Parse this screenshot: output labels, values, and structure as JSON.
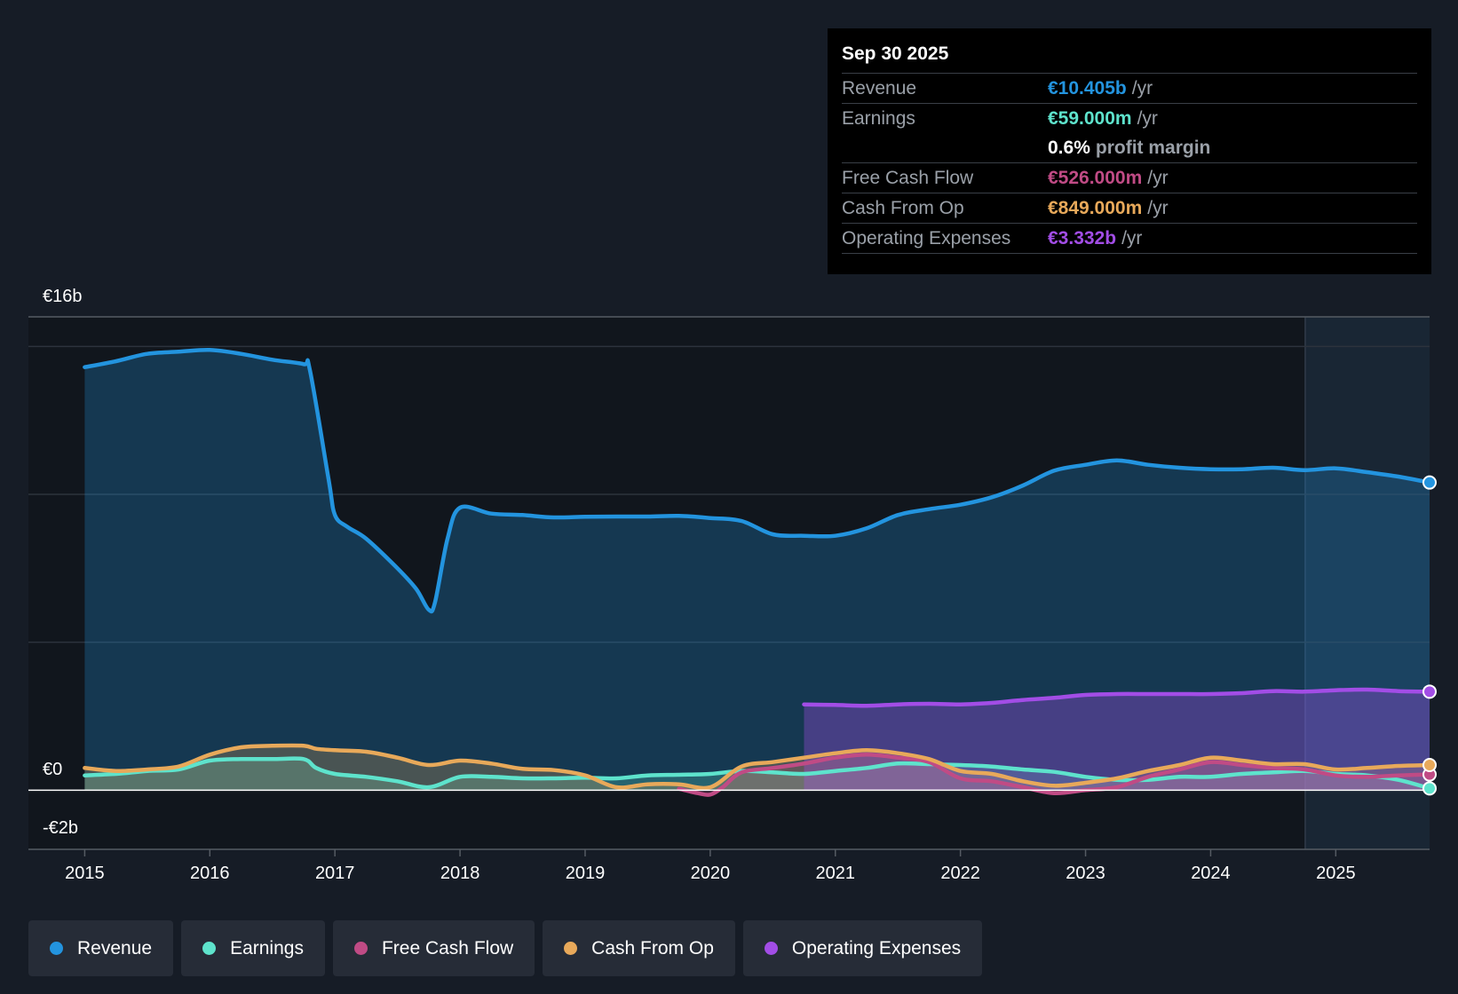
{
  "chart_data": {
    "type": "area",
    "y_tick_labels": [
      "€16b",
      "€0",
      "-€2b"
    ],
    "x_tick_labels": [
      "2015",
      "2016",
      "2017",
      "2018",
      "2019",
      "2020",
      "2021",
      "2022",
      "2023",
      "2024",
      "2025"
    ],
    "ylim": [
      -2,
      16
    ],
    "xlim": [
      2014.55,
      2025.75
    ],
    "series": [
      {
        "name": "Revenue",
        "color": "#2394df",
        "points": [
          [
            2015.0,
            14.3
          ],
          [
            2015.25,
            14.5
          ],
          [
            2015.5,
            14.75
          ],
          [
            2015.75,
            14.82
          ],
          [
            2016.0,
            14.88
          ],
          [
            2016.25,
            14.75
          ],
          [
            2016.5,
            14.55
          ],
          [
            2016.75,
            14.4
          ],
          [
            2016.8,
            14.2
          ],
          [
            2016.95,
            10.5
          ],
          [
            2017.0,
            9.3
          ],
          [
            2017.1,
            8.9
          ],
          [
            2017.25,
            8.5
          ],
          [
            2017.5,
            7.5
          ],
          [
            2017.65,
            6.8
          ],
          [
            2017.75,
            6.1
          ],
          [
            2017.8,
            6.35
          ],
          [
            2017.9,
            8.5
          ],
          [
            2018.0,
            9.55
          ],
          [
            2018.25,
            9.35
          ],
          [
            2018.5,
            9.3
          ],
          [
            2018.75,
            9.22
          ],
          [
            2019.0,
            9.24
          ],
          [
            2019.25,
            9.25
          ],
          [
            2019.5,
            9.25
          ],
          [
            2019.75,
            9.27
          ],
          [
            2020.0,
            9.2
          ],
          [
            2020.25,
            9.1
          ],
          [
            2020.5,
            8.65
          ],
          [
            2020.75,
            8.6
          ],
          [
            2021.0,
            8.6
          ],
          [
            2021.25,
            8.85
          ],
          [
            2021.5,
            9.3
          ],
          [
            2021.75,
            9.5
          ],
          [
            2022.0,
            9.65
          ],
          [
            2022.25,
            9.9
          ],
          [
            2022.5,
            10.3
          ],
          [
            2022.75,
            10.8
          ],
          [
            2023.0,
            11.0
          ],
          [
            2023.25,
            11.15
          ],
          [
            2023.5,
            11.0
          ],
          [
            2023.75,
            10.9
          ],
          [
            2024.0,
            10.85
          ],
          [
            2024.25,
            10.85
          ],
          [
            2024.5,
            10.9
          ],
          [
            2024.75,
            10.82
          ],
          [
            2025.0,
            10.88
          ],
          [
            2025.25,
            10.75
          ],
          [
            2025.5,
            10.6
          ],
          [
            2025.75,
            10.4
          ]
        ]
      },
      {
        "name": "Earnings",
        "color": "#5ee3cc",
        "points": [
          [
            2015.0,
            0.5
          ],
          [
            2015.25,
            0.55
          ],
          [
            2015.5,
            0.65
          ],
          [
            2015.75,
            0.7
          ],
          [
            2016.0,
            1.0
          ],
          [
            2016.25,
            1.05
          ],
          [
            2016.5,
            1.05
          ],
          [
            2016.75,
            1.05
          ],
          [
            2016.85,
            0.75
          ],
          [
            2017.0,
            0.55
          ],
          [
            2017.25,
            0.45
          ],
          [
            2017.5,
            0.3
          ],
          [
            2017.75,
            0.1
          ],
          [
            2018.0,
            0.45
          ],
          [
            2018.25,
            0.45
          ],
          [
            2018.5,
            0.4
          ],
          [
            2018.75,
            0.4
          ],
          [
            2019.0,
            0.42
          ],
          [
            2019.25,
            0.4
          ],
          [
            2019.5,
            0.5
          ],
          [
            2019.75,
            0.52
          ],
          [
            2020.0,
            0.55
          ],
          [
            2020.25,
            0.65
          ],
          [
            2020.5,
            0.6
          ],
          [
            2020.75,
            0.55
          ],
          [
            2021.0,
            0.65
          ],
          [
            2021.25,
            0.75
          ],
          [
            2021.5,
            0.9
          ],
          [
            2021.75,
            0.88
          ],
          [
            2022.0,
            0.85
          ],
          [
            2022.25,
            0.8
          ],
          [
            2022.5,
            0.7
          ],
          [
            2022.75,
            0.62
          ],
          [
            2023.0,
            0.45
          ],
          [
            2023.25,
            0.35
          ],
          [
            2023.5,
            0.35
          ],
          [
            2023.75,
            0.45
          ],
          [
            2024.0,
            0.45
          ],
          [
            2024.25,
            0.55
          ],
          [
            2024.5,
            0.6
          ],
          [
            2024.75,
            0.65
          ],
          [
            2025.0,
            0.55
          ],
          [
            2025.25,
            0.5
          ],
          [
            2025.5,
            0.35
          ],
          [
            2025.75,
            0.06
          ]
        ]
      },
      {
        "name": "Free Cash Flow",
        "color": "#c04b85",
        "points": [
          [
            2019.75,
            0.05
          ],
          [
            2019.9,
            -0.1
          ],
          [
            2020.0,
            -0.15
          ],
          [
            2020.1,
            0.1
          ],
          [
            2020.25,
            0.6
          ],
          [
            2020.5,
            0.75
          ],
          [
            2020.75,
            0.9
          ],
          [
            2021.0,
            1.1
          ],
          [
            2021.25,
            1.2
          ],
          [
            2021.5,
            1.1
          ],
          [
            2021.75,
            0.95
          ],
          [
            2022.0,
            0.4
          ],
          [
            2022.25,
            0.3
          ],
          [
            2022.5,
            0.1
          ],
          [
            2022.75,
            -0.1
          ],
          [
            2023.0,
            0.0
          ],
          [
            2023.25,
            0.1
          ],
          [
            2023.5,
            0.45
          ],
          [
            2023.75,
            0.7
          ],
          [
            2024.0,
            0.95
          ],
          [
            2024.25,
            0.85
          ],
          [
            2024.5,
            0.75
          ],
          [
            2024.75,
            0.7
          ],
          [
            2025.0,
            0.5
          ],
          [
            2025.25,
            0.45
          ],
          [
            2025.5,
            0.5
          ],
          [
            2025.75,
            0.53
          ]
        ]
      },
      {
        "name": "Cash From Op",
        "color": "#e8a95a",
        "points": [
          [
            2015.0,
            0.75
          ],
          [
            2015.25,
            0.65
          ],
          [
            2015.5,
            0.7
          ],
          [
            2015.75,
            0.8
          ],
          [
            2016.0,
            1.2
          ],
          [
            2016.25,
            1.45
          ],
          [
            2016.5,
            1.5
          ],
          [
            2016.75,
            1.5
          ],
          [
            2016.85,
            1.4
          ],
          [
            2017.0,
            1.35
          ],
          [
            2017.25,
            1.3
          ],
          [
            2017.5,
            1.1
          ],
          [
            2017.75,
            0.85
          ],
          [
            2018.0,
            1.0
          ],
          [
            2018.25,
            0.9
          ],
          [
            2018.5,
            0.72
          ],
          [
            2018.75,
            0.68
          ],
          [
            2019.0,
            0.5
          ],
          [
            2019.25,
            0.1
          ],
          [
            2019.5,
            0.2
          ],
          [
            2019.75,
            0.2
          ],
          [
            2020.0,
            0.1
          ],
          [
            2020.25,
            0.8
          ],
          [
            2020.5,
            0.95
          ],
          [
            2020.75,
            1.1
          ],
          [
            2021.0,
            1.25
          ],
          [
            2021.25,
            1.35
          ],
          [
            2021.5,
            1.25
          ],
          [
            2021.75,
            1.05
          ],
          [
            2022.0,
            0.65
          ],
          [
            2022.25,
            0.55
          ],
          [
            2022.5,
            0.3
          ],
          [
            2022.75,
            0.15
          ],
          [
            2023.0,
            0.25
          ],
          [
            2023.25,
            0.4
          ],
          [
            2023.5,
            0.65
          ],
          [
            2023.75,
            0.85
          ],
          [
            2024.0,
            1.1
          ],
          [
            2024.25,
            1.0
          ],
          [
            2024.5,
            0.88
          ],
          [
            2024.75,
            0.88
          ],
          [
            2025.0,
            0.7
          ],
          [
            2025.25,
            0.75
          ],
          [
            2025.5,
            0.82
          ],
          [
            2025.75,
            0.85
          ]
        ]
      },
      {
        "name": "Operating Expenses",
        "color": "#a24de6",
        "points": [
          [
            2020.75,
            2.9
          ],
          [
            2021.0,
            2.88
          ],
          [
            2021.25,
            2.85
          ],
          [
            2021.5,
            2.9
          ],
          [
            2021.75,
            2.92
          ],
          [
            2022.0,
            2.9
          ],
          [
            2022.25,
            2.95
          ],
          [
            2022.5,
            3.05
          ],
          [
            2022.75,
            3.12
          ],
          [
            2023.0,
            3.22
          ],
          [
            2023.25,
            3.25
          ],
          [
            2023.5,
            3.25
          ],
          [
            2023.75,
            3.25
          ],
          [
            2024.0,
            3.25
          ],
          [
            2024.25,
            3.28
          ],
          [
            2024.5,
            3.35
          ],
          [
            2024.75,
            3.33
          ],
          [
            2025.0,
            3.38
          ],
          [
            2025.25,
            3.4
          ],
          [
            2025.5,
            3.35
          ],
          [
            2025.75,
            3.33
          ]
        ]
      }
    ]
  },
  "tooltip": {
    "date": "Sep 30 2025",
    "revenue": {
      "label": "Revenue",
      "value": "€10.405b",
      "unit": "/yr"
    },
    "earnings": {
      "label": "Earnings",
      "value": "€59.000m",
      "unit": "/yr"
    },
    "margin": {
      "value": "0.6%",
      "text": "profit margin"
    },
    "fcf": {
      "label": "Free Cash Flow",
      "value": "€526.000m",
      "unit": "/yr"
    },
    "cfo": {
      "label": "Cash From Op",
      "value": "€849.000m",
      "unit": "/yr"
    },
    "opex": {
      "label": "Operating Expenses",
      "value": "€3.332b",
      "unit": "/yr"
    }
  },
  "legend": [
    {
      "label": "Revenue",
      "color": "#2394df"
    },
    {
      "label": "Earnings",
      "color": "#5ee3cc"
    },
    {
      "label": "Free Cash Flow",
      "color": "#c04b85"
    },
    {
      "label": "Cash From Op",
      "color": "#e8a95a"
    },
    {
      "label": "Operating Expenses",
      "color": "#a24de6"
    }
  ]
}
